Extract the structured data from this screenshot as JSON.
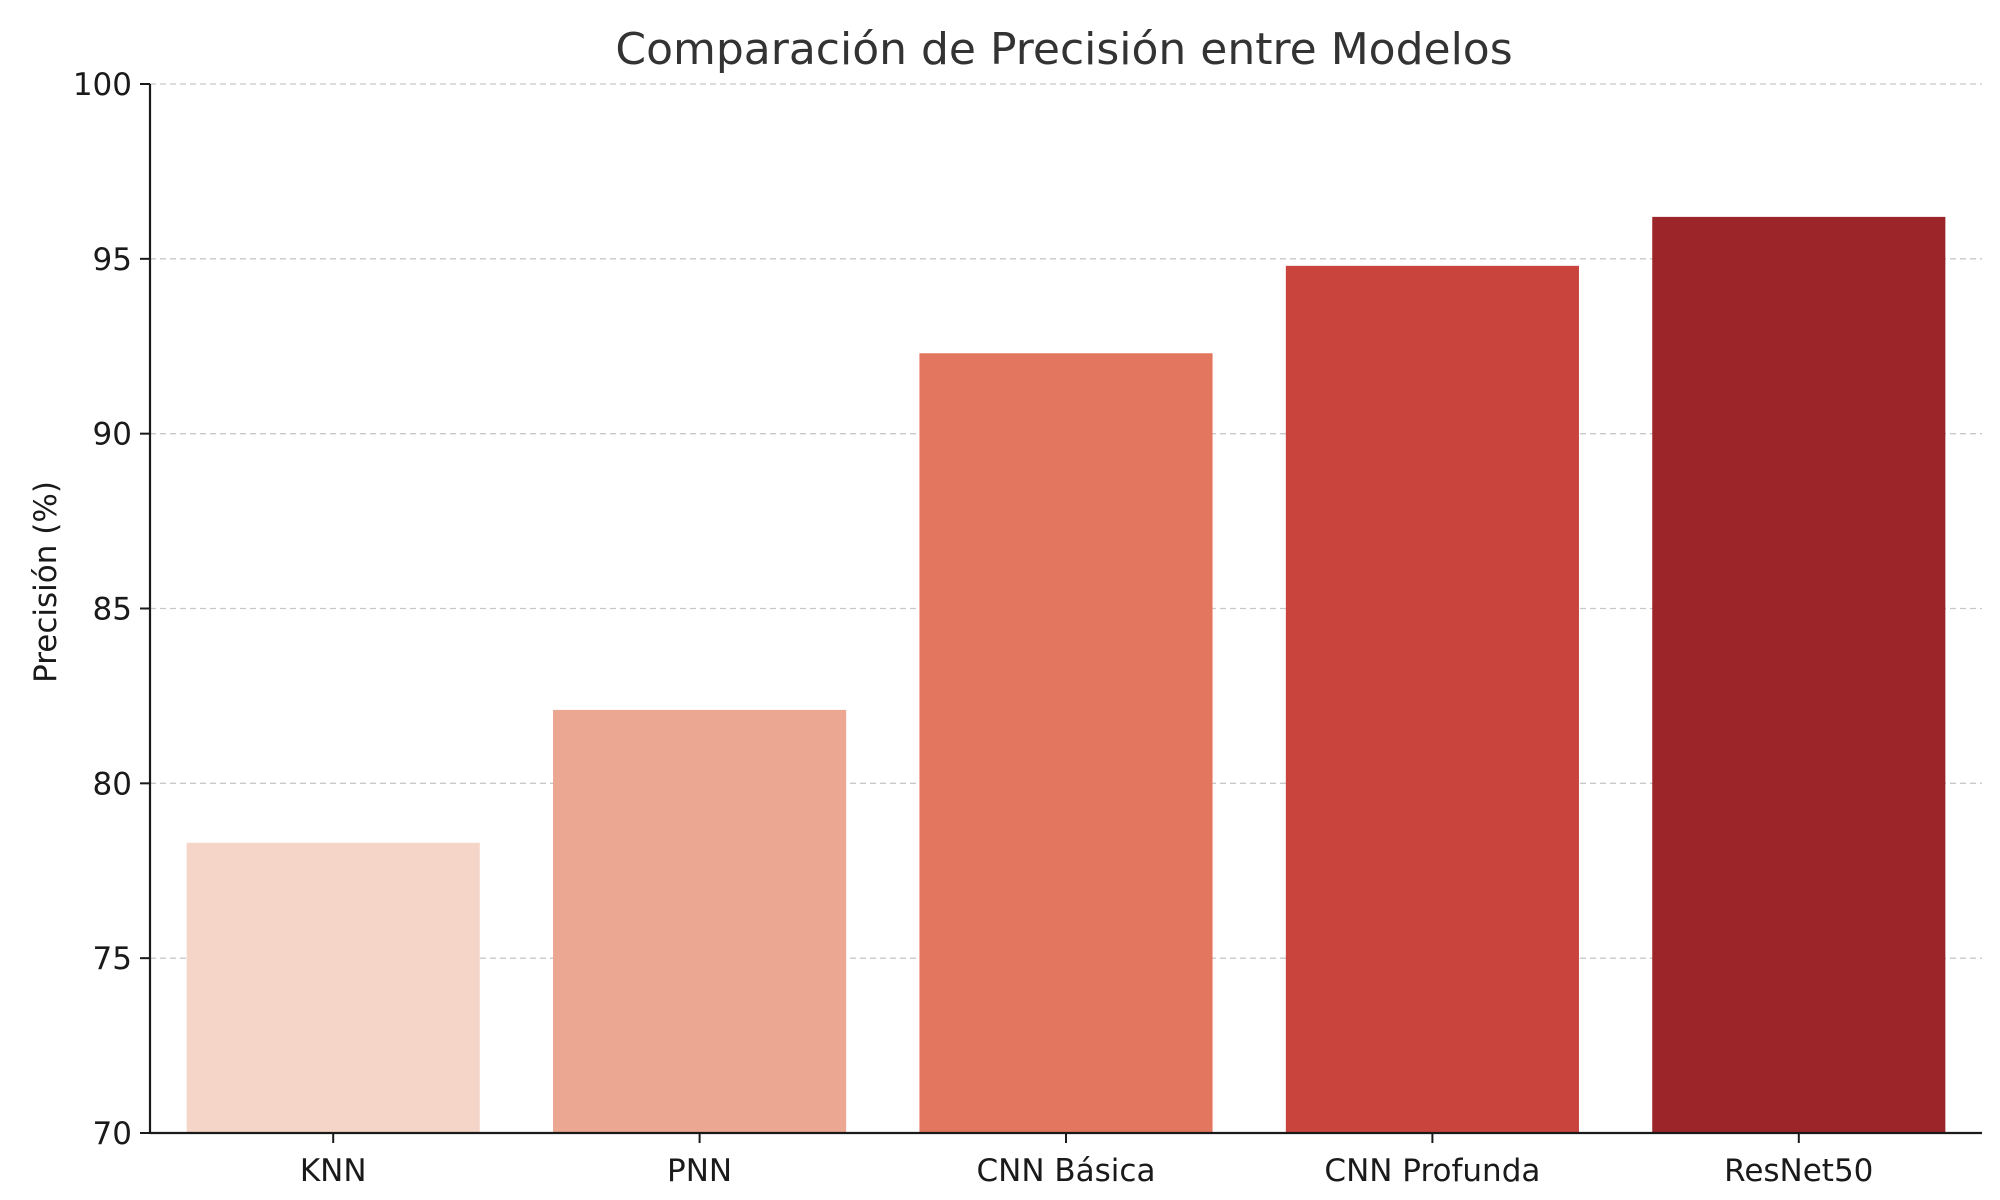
{
  "chart_data": {
    "type": "bar",
    "title": "Comparación de Precisión entre Modelos",
    "xlabel": "",
    "ylabel": "Precisión (%)",
    "categories": [
      "KNN",
      "PNN",
      "CNN Básica",
      "CNN Profunda",
      "ResNet50"
    ],
    "values": [
      78.3,
      82.1,
      92.3,
      94.8,
      96.2
    ],
    "colors": [
      "#f5d5c8",
      "#eba792",
      "#e3765f",
      "#ca443e",
      "#9c252a"
    ],
    "ylim": [
      70,
      100
    ],
    "yticks": [
      70,
      75,
      80,
      85,
      90,
      95,
      100
    ],
    "grid": true,
    "grid_axis": "y"
  }
}
